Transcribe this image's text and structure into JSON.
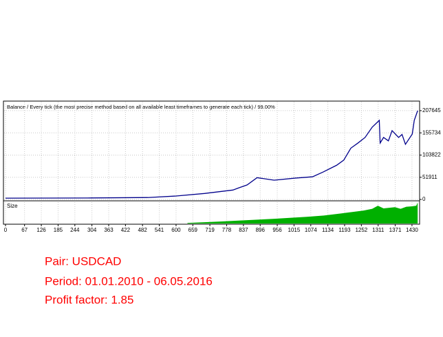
{
  "chart_data": [
    {
      "type": "line",
      "title": "Balance / Every tick (the most precise method based on all available least timeframes to generate each tick) / 99.00%",
      "x": [
        0,
        300,
        500,
        600,
        700,
        800,
        820,
        850,
        885,
        945,
        1020,
        1080,
        1117,
        1165,
        1190,
        1215,
        1240,
        1265,
        1290,
        1315,
        1318,
        1330,
        1347,
        1360,
        1383,
        1395,
        1407,
        1431,
        1438,
        1450
      ],
      "values": [
        3000,
        3500,
        4500,
        8000,
        14000,
        22000,
        27000,
        34000,
        51000,
        45000,
        50000,
        53000,
        64000,
        80000,
        92000,
        120000,
        132000,
        145000,
        169000,
        185000,
        132000,
        145000,
        137000,
        161000,
        145000,
        152000,
        129000,
        153000,
        185000,
        207645
      ],
      "color": "#00008b",
      "xlim": [
        0,
        1452
      ],
      "ylim": [
        -3200,
        230000
      ],
      "yticks": [
        0,
        51911,
        103822,
        155734,
        207645
      ],
      "grid": true
    },
    {
      "type": "area",
      "title": "Size",
      "x": [
        640,
        700,
        760,
        820,
        880,
        940,
        1000,
        1060,
        1120,
        1180,
        1220,
        1260,
        1290,
        1310,
        1330,
        1350,
        1370,
        1390,
        1410,
        1430,
        1445,
        1450
      ],
      "values": [
        0.03,
        0.06,
        0.1,
        0.14,
        0.18,
        0.22,
        0.27,
        0.32,
        0.38,
        0.48,
        0.55,
        0.62,
        0.7,
        0.85,
        0.72,
        0.75,
        0.78,
        0.7,
        0.8,
        0.82,
        0.85,
        1.0
      ],
      "color": "#00b000",
      "xlim": [
        0,
        1452
      ],
      "ylim": [
        0,
        1.05
      ],
      "xticks": [
        0,
        67,
        126,
        185,
        244,
        304,
        363,
        422,
        482,
        541,
        600,
        659,
        719,
        778,
        837,
        896,
        956,
        1015,
        1074,
        1134,
        1193,
        1252,
        1311,
        1371,
        1430
      ],
      "grid": true
    }
  ],
  "notes": [
    "Pair: USDCAD",
    "Period: 01.01.2010 - 06.05.2016",
    "Profit factor: 1.85"
  ]
}
